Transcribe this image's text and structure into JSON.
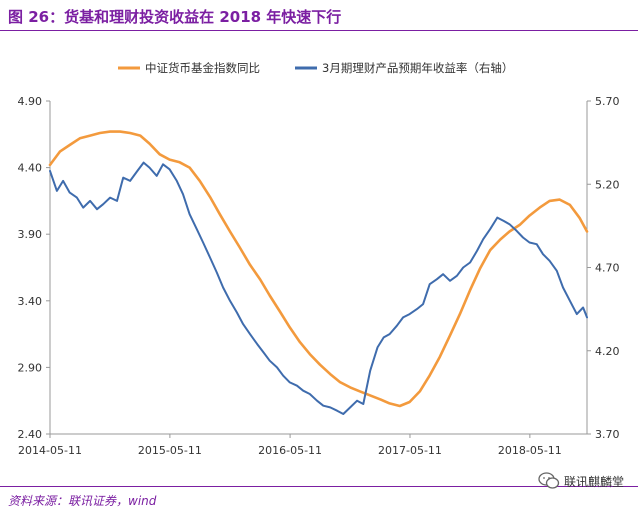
{
  "figure": {
    "title": "图 26：货基和理财投资收益在 2018 年快速下行",
    "source": "资料来源：联讯证券，wind",
    "watermark": "联讯麒麟堂"
  },
  "colors": {
    "series_orange": "#f39a3d",
    "series_blue": "#3f6cad",
    "accent": "#7b1fa2"
  },
  "chart_data": {
    "type": "line",
    "title": "",
    "xlabel": "",
    "ylabel": "",
    "x_ticks": [
      "2014-05-11",
      "2015-05-11",
      "2016-05-11",
      "2017-05-11",
      "2018-05-11"
    ],
    "x_range": [
      "2014-05-11",
      "2018-11-01"
    ],
    "ylim_left": [
      2.4,
      4.9
    ],
    "yticks_left": [
      "2.40",
      "2.90",
      "3.40",
      "3.90",
      "4.40",
      "4.90"
    ],
    "ylim_right": [
      3.7,
      5.7
    ],
    "yticks_right": [
      "3.70",
      "4.20",
      "4.70",
      "5.20",
      "5.70"
    ],
    "legend_position": "top",
    "series": [
      {
        "name": "中证货币基金指数同比",
        "axis": "left",
        "color": "#f39a3d",
        "x": [
          "2014-05-11",
          "2014-06-10",
          "2014-07-10",
          "2014-08-10",
          "2014-09-10",
          "2014-10-10",
          "2014-11-10",
          "2014-12-10",
          "2015-01-10",
          "2015-02-10",
          "2015-03-10",
          "2015-04-10",
          "2015-05-10",
          "2015-06-10",
          "2015-07-10",
          "2015-08-10",
          "2015-09-10",
          "2015-10-10",
          "2015-11-10",
          "2015-12-10",
          "2016-01-10",
          "2016-02-10",
          "2016-03-10",
          "2016-04-10",
          "2016-05-10",
          "2016-06-10",
          "2016-07-10",
          "2016-08-10",
          "2016-09-10",
          "2016-10-10",
          "2016-11-10",
          "2016-12-10",
          "2017-01-10",
          "2017-02-10",
          "2017-03-10",
          "2017-04-10",
          "2017-05-10",
          "2017-06-10",
          "2017-07-10",
          "2017-08-10",
          "2017-09-10",
          "2017-10-10",
          "2017-11-10",
          "2017-12-10",
          "2018-01-10",
          "2018-02-10",
          "2018-03-10",
          "2018-04-10",
          "2018-05-10",
          "2018-06-10",
          "2018-07-10",
          "2018-08-10",
          "2018-09-10",
          "2018-10-10",
          "2018-11-01"
        ],
        "y": [
          4.42,
          4.52,
          4.57,
          4.62,
          4.64,
          4.66,
          4.67,
          4.67,
          4.66,
          4.64,
          4.58,
          4.5,
          4.46,
          4.44,
          4.4,
          4.3,
          4.18,
          4.05,
          3.92,
          3.8,
          3.67,
          3.56,
          3.44,
          3.32,
          3.2,
          3.09,
          3.0,
          2.92,
          2.85,
          2.79,
          2.75,
          2.72,
          2.69,
          2.66,
          2.63,
          2.61,
          2.64,
          2.72,
          2.84,
          2.98,
          3.14,
          3.3,
          3.48,
          3.64,
          3.78,
          3.86,
          3.92,
          3.97,
          4.04,
          4.1,
          4.15,
          4.16,
          4.12,
          4.02,
          3.92
        ]
      },
      {
        "name": "3月期理财产品预期年收益率（右轴）",
        "axis": "right",
        "color": "#3f6cad",
        "x": [
          "2014-05-11",
          "2014-06-01",
          "2014-06-20",
          "2014-07-10",
          "2014-08-01",
          "2014-08-20",
          "2014-09-10",
          "2014-10-01",
          "2014-10-20",
          "2014-11-10",
          "2014-12-01",
          "2014-12-20",
          "2015-01-10",
          "2015-02-01",
          "2015-02-20",
          "2015-03-10",
          "2015-04-01",
          "2015-04-20",
          "2015-05-10",
          "2015-06-01",
          "2015-06-20",
          "2015-07-10",
          "2015-08-01",
          "2015-08-20",
          "2015-09-10",
          "2015-10-01",
          "2015-10-20",
          "2015-11-10",
          "2015-12-01",
          "2015-12-20",
          "2016-01-10",
          "2016-02-01",
          "2016-02-20",
          "2016-03-10",
          "2016-04-01",
          "2016-04-20",
          "2016-05-10",
          "2016-06-01",
          "2016-06-20",
          "2016-07-10",
          "2016-08-01",
          "2016-08-20",
          "2016-09-10",
          "2016-10-01",
          "2016-10-20",
          "2016-11-10",
          "2016-12-01",
          "2016-12-20",
          "2017-01-10",
          "2017-02-01",
          "2017-02-20",
          "2017-03-10",
          "2017-04-01",
          "2017-04-20",
          "2017-05-10",
          "2017-06-01",
          "2017-06-20",
          "2017-07-10",
          "2017-08-01",
          "2017-08-20",
          "2017-09-10",
          "2017-10-01",
          "2017-10-20",
          "2017-11-10",
          "2017-12-01",
          "2017-12-20",
          "2018-01-10",
          "2018-02-01",
          "2018-02-20",
          "2018-03-10",
          "2018-04-01",
          "2018-04-20",
          "2018-05-10",
          "2018-06-01",
          "2018-06-20",
          "2018-07-10",
          "2018-08-01",
          "2018-08-20",
          "2018-09-10",
          "2018-10-01",
          "2018-10-20",
          "2018-11-01"
        ],
        "y": [
          5.28,
          5.16,
          5.22,
          5.15,
          5.12,
          5.06,
          5.1,
          5.05,
          5.08,
          5.12,
          5.1,
          5.24,
          5.22,
          5.28,
          5.33,
          5.3,
          5.25,
          5.32,
          5.29,
          5.22,
          5.14,
          5.02,
          4.93,
          4.85,
          4.76,
          4.67,
          4.58,
          4.5,
          4.43,
          4.36,
          4.3,
          4.24,
          4.19,
          4.14,
          4.1,
          4.05,
          4.01,
          3.99,
          3.96,
          3.94,
          3.9,
          3.87,
          3.86,
          3.84,
          3.82,
          3.86,
          3.9,
          3.88,
          4.08,
          4.22,
          4.28,
          4.3,
          4.35,
          4.4,
          4.42,
          4.45,
          4.48,
          4.6,
          4.63,
          4.66,
          4.62,
          4.65,
          4.7,
          4.73,
          4.8,
          4.87,
          4.93,
          5.0,
          4.98,
          4.96,
          4.92,
          4.88,
          4.85,
          4.84,
          4.78,
          4.74,
          4.68,
          4.58,
          4.5,
          4.42,
          4.46,
          4.4
        ]
      }
    ]
  }
}
